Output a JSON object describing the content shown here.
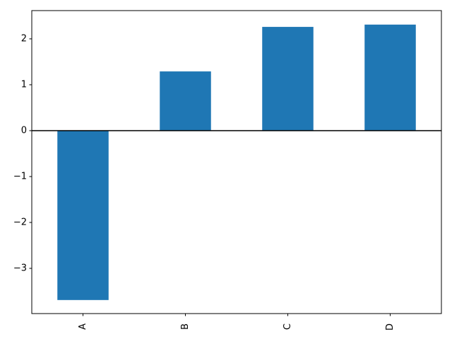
{
  "chart_data": {
    "type": "bar",
    "categories": [
      "A",
      "B",
      "C",
      "D"
    ],
    "values": [
      -3.69,
      1.29,
      2.26,
      2.31
    ],
    "color": "#1f77b4",
    "ylim": [
      -3.985,
      2.615
    ],
    "yticks": [
      {
        "value": -3,
        "label": "−3"
      },
      {
        "value": -2,
        "label": "−2"
      },
      {
        "value": -1,
        "label": "−1"
      },
      0,
      1,
      2
    ],
    "hline": 0,
    "grid": false
  }
}
